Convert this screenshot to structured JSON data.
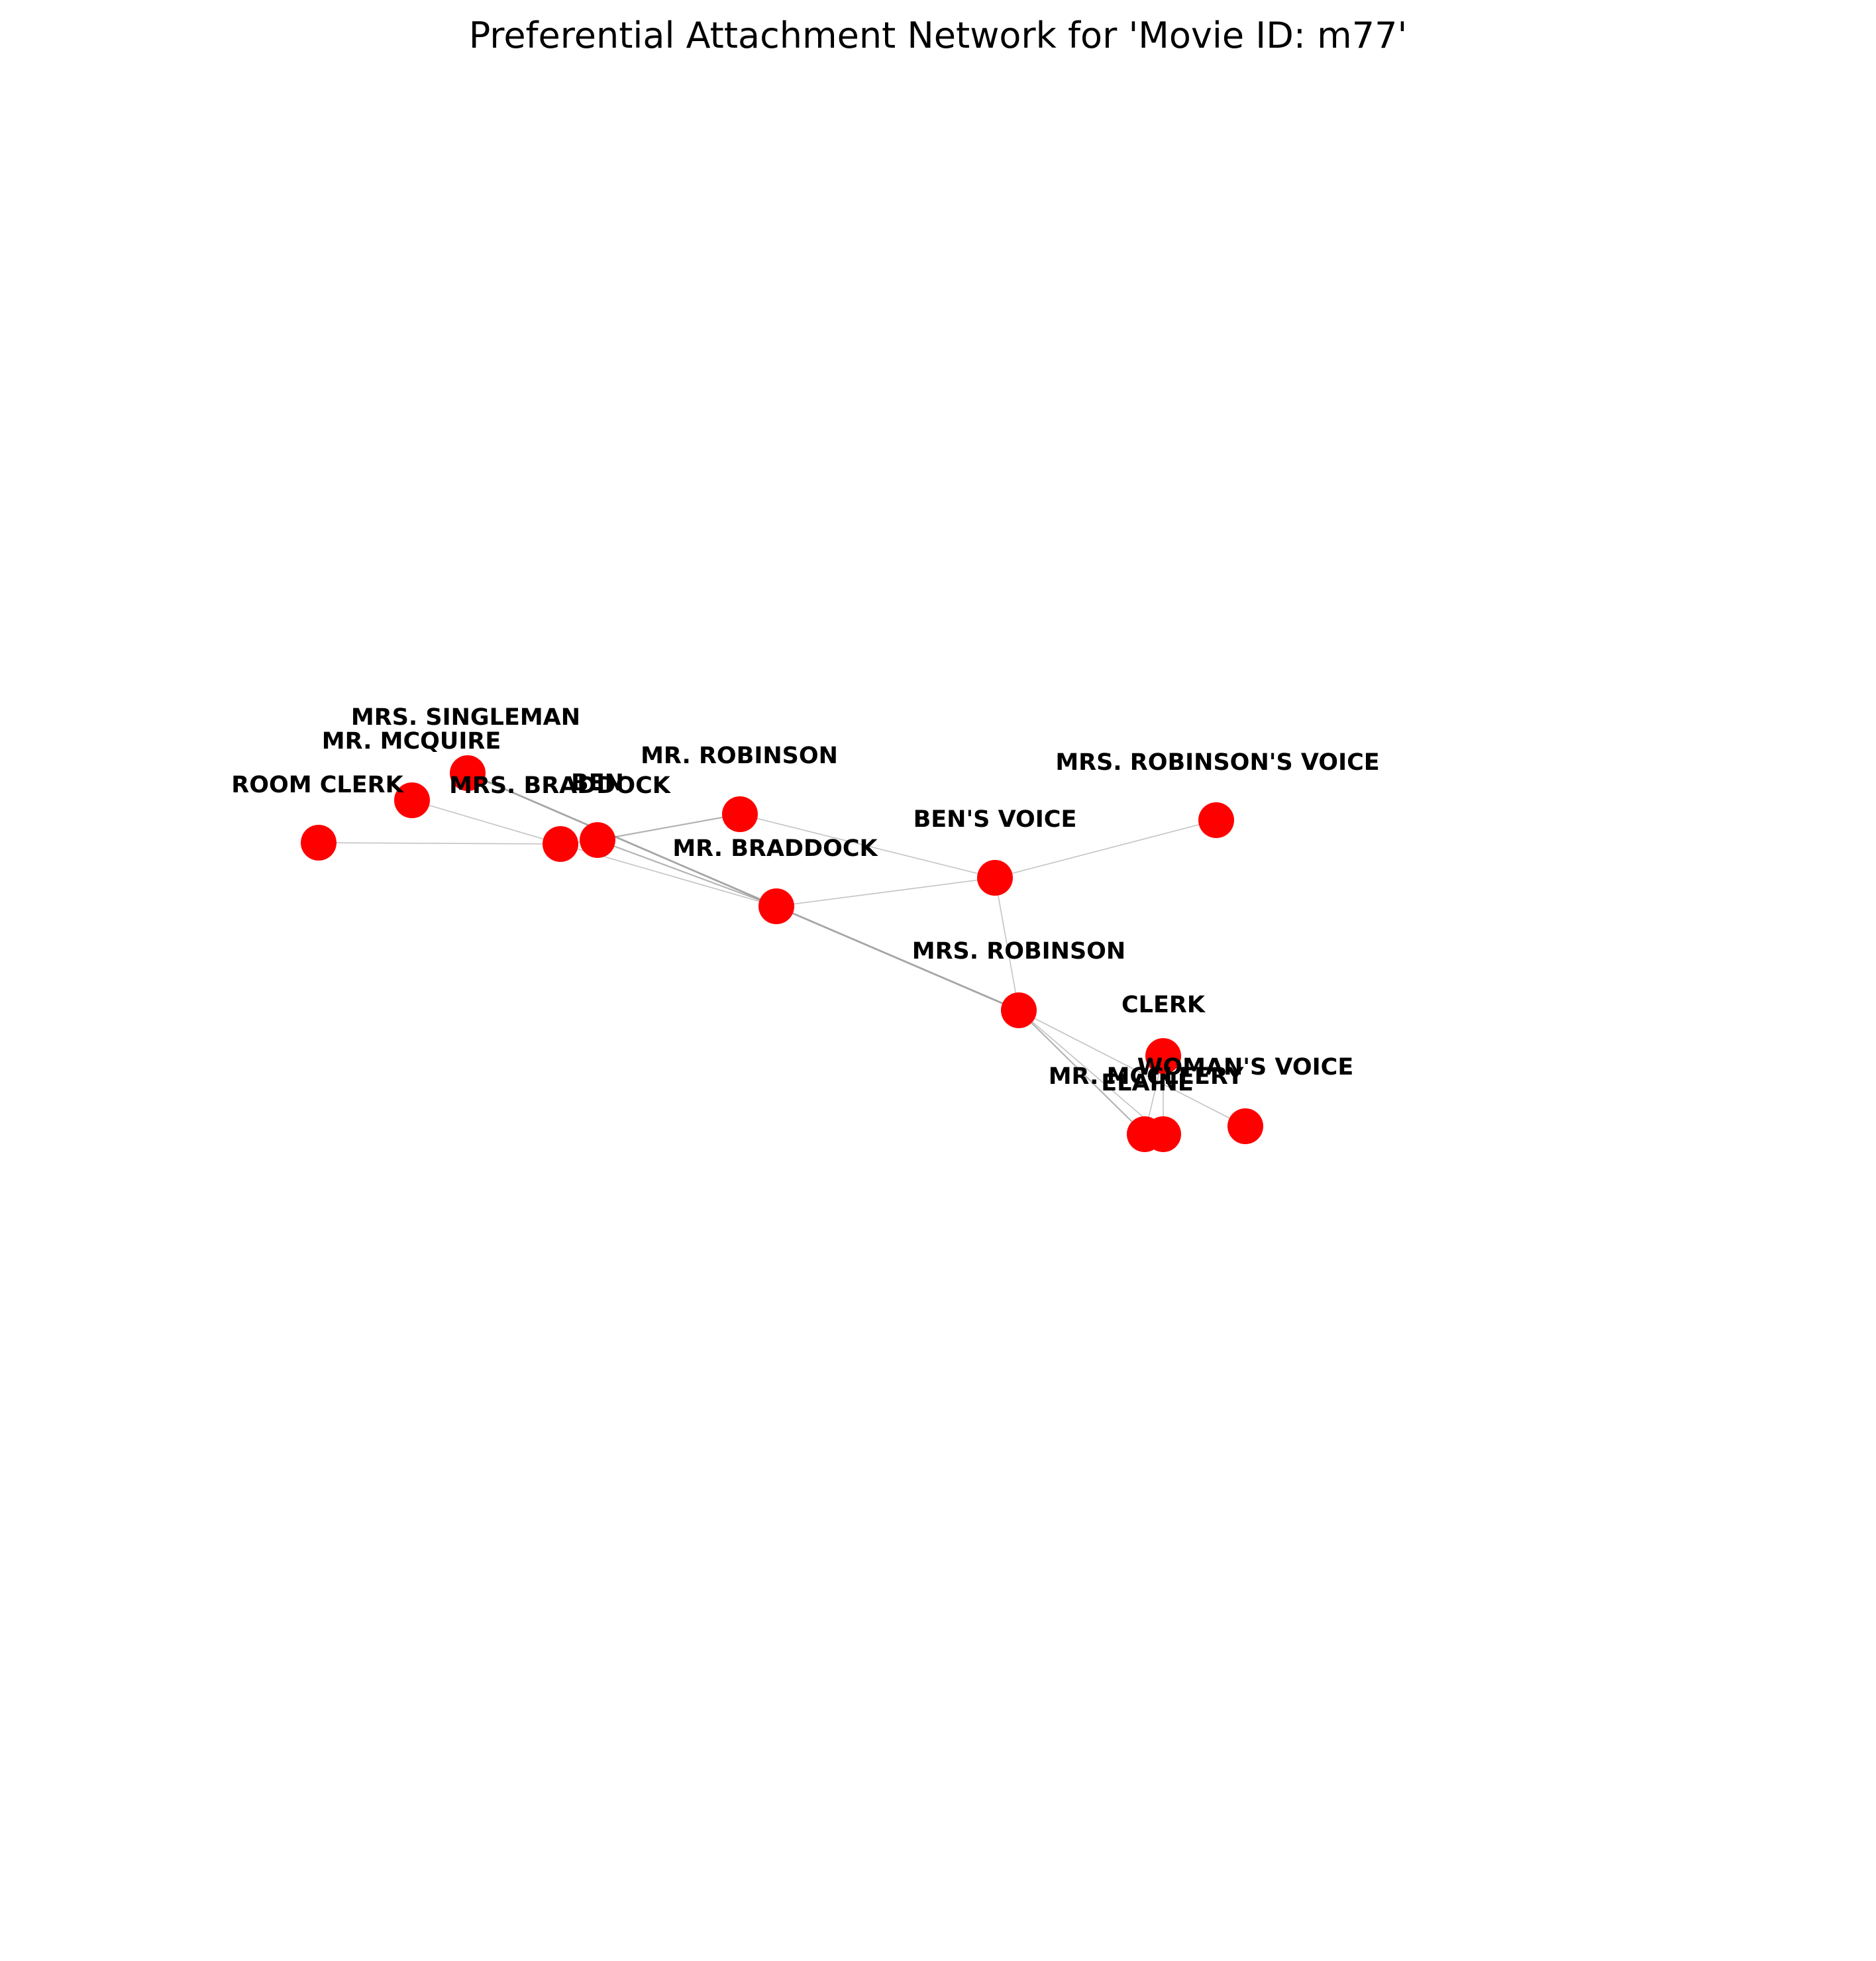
{
  "title": "Preferential Attachment Network for 'Movie ID: m77'",
  "colors": {
    "node": "#ff0000",
    "edge": "#808080",
    "label": "#000000",
    "background": "#ffffff"
  },
  "graph": {
    "nodes": [
      {
        "id": "ROOM CLERK",
        "label": "ROOM CLERK"
      },
      {
        "id": "MR. MCQUIRE",
        "label": "MR. MCQUIRE"
      },
      {
        "id": "MRS. SINGLEMAN",
        "label": "MRS. SINGLEMAN"
      },
      {
        "id": "MRS. BRADDOCK",
        "label": "MRS. BRADDOCK"
      },
      {
        "id": "BEN",
        "label": "BEN"
      },
      {
        "id": "MR. ROBINSON",
        "label": "MR. ROBINSON"
      },
      {
        "id": "MR. BRADDOCK",
        "label": "MR. BRADDOCK"
      },
      {
        "id": "BEN'S VOICE",
        "label": "BEN'S VOICE"
      },
      {
        "id": "MRS. ROBINSON'S VOICE",
        "label": "MRS. ROBINSON'S VOICE"
      },
      {
        "id": "MRS. ROBINSON",
        "label": "MRS. ROBINSON"
      },
      {
        "id": "CLERK",
        "label": "CLERK"
      },
      {
        "id": "WOMAN'S VOICE",
        "label": "WOMAN'S VOICE"
      },
      {
        "id": "MR. MCCLEERY",
        "label": "MR. MCCLEERY"
      },
      {
        "id": "ELAINE",
        "label": "ELAINE"
      }
    ],
    "edges": [
      {
        "source": "ROOM CLERK",
        "target": "MRS. BRADDOCK",
        "weight": 1
      },
      {
        "source": "MR. MCQUIRE",
        "target": "MRS. BRADDOCK",
        "weight": 1
      },
      {
        "source": "MRS. SINGLEMAN",
        "target": "MR. BRADDOCK",
        "weight": 3
      },
      {
        "source": "MRS. BRADDOCK",
        "target": "BEN",
        "weight": 1
      },
      {
        "source": "MRS. BRADDOCK",
        "target": "MR. BRADDOCK",
        "weight": 1
      },
      {
        "source": "BEN",
        "target": "MR. ROBINSON",
        "weight": 2
      },
      {
        "source": "BEN",
        "target": "MR. BRADDOCK",
        "weight": 2
      },
      {
        "source": "MR. ROBINSON",
        "target": "BEN'S VOICE",
        "weight": 1
      },
      {
        "source": "MR. BRADDOCK",
        "target": "BEN'S VOICE",
        "weight": 1
      },
      {
        "source": "MR. BRADDOCK",
        "target": "MRS. ROBINSON",
        "weight": 3
      },
      {
        "source": "BEN'S VOICE",
        "target": "MRS. ROBINSON'S VOICE",
        "weight": 1
      },
      {
        "source": "BEN'S VOICE",
        "target": "MRS. ROBINSON",
        "weight": 1
      },
      {
        "source": "MRS. ROBINSON",
        "target": "WOMAN'S VOICE",
        "weight": 1
      },
      {
        "source": "MRS. ROBINSON",
        "target": "MR. MCCLEERY",
        "weight": 2
      },
      {
        "source": "MRS. ROBINSON",
        "target": "ELAINE",
        "weight": 1
      },
      {
        "source": "CLERK",
        "target": "MR. MCCLEERY",
        "weight": 1
      },
      {
        "source": "CLERK",
        "target": "ELAINE",
        "weight": 1
      }
    ]
  }
}
